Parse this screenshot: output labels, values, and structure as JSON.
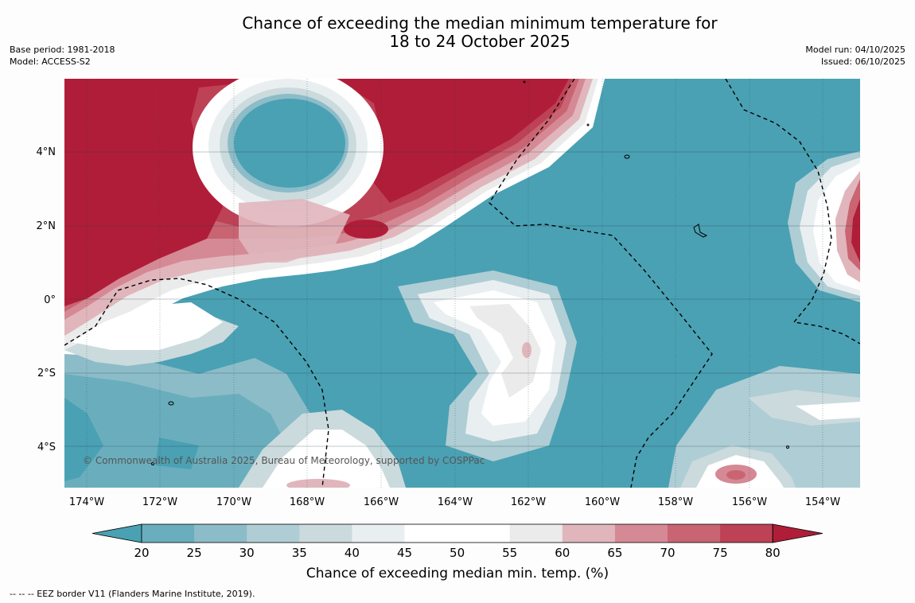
{
  "header": {
    "title_line1": "Chance of exceeding the median minimum temperature for",
    "title_line2": "18 to 24 October 2025",
    "base_period": "Base period: 1981-2018",
    "model": "Model: ACCESS-S2",
    "model_run": "Model run: 04/10/2025",
    "issued": "Issued: 06/10/2025"
  },
  "map": {
    "copyright": "© Commonwealth of Australia 2025, Bureau of Meteorology, supported by COSPPac",
    "lat_labels": [
      "4°N",
      "2°N",
      "0°",
      "2°S",
      "4°S"
    ],
    "lon_labels": [
      "174°W",
      "172°W",
      "170°W",
      "168°W",
      "166°W",
      "164°W",
      "162°W",
      "160°W",
      "158°W",
      "156°W",
      "154°W"
    ]
  },
  "colorbar": {
    "ticks": [
      "20",
      "25",
      "30",
      "35",
      "40",
      "45",
      "50",
      "55",
      "60",
      "65",
      "70",
      "75",
      "80"
    ],
    "label": "Chance of exceeding median min. temp. (%)",
    "colors": [
      "#4aa1b3",
      "#6aaebd",
      "#8cbcc8",
      "#afcdd4",
      "#cbdadd",
      "#e9eff0",
      "#ffffff",
      "#ffffff",
      "#ebebeb",
      "#e0b6bc",
      "#d58995",
      "#c96472",
      "#bd4256",
      "#b01d38"
    ]
  },
  "footnote": "--  --  -- EEZ border V11 (Flanders Marine Institute, 2019)."
}
